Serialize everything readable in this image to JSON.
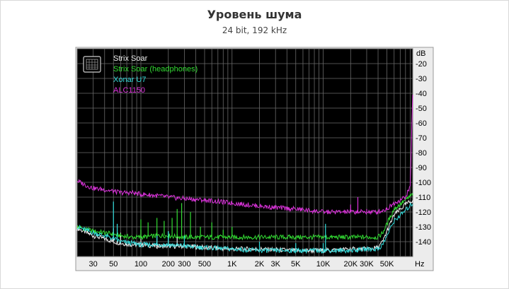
{
  "chart_data": {
    "type": "line",
    "title": "Уровень шума",
    "subtitle": "24 bit, 192 kHz",
    "xlabel": "Hz",
    "ylabel": "dB",
    "x_scale": "log",
    "xlim": [
      20,
      96000
    ],
    "ylim": [
      -150,
      -10
    ],
    "grid": true,
    "legend_position": "top-left",
    "background": "#000000",
    "x_ticks": [
      {
        "v": 30,
        "label": "30"
      },
      {
        "v": 50,
        "label": "50"
      },
      {
        "v": 100,
        "label": "100"
      },
      {
        "v": 200,
        "label": "200"
      },
      {
        "v": 300,
        "label": "300"
      },
      {
        "v": 500,
        "label": "500"
      },
      {
        "v": 1000,
        "label": "1K"
      },
      {
        "v": 2000,
        "label": "2K"
      },
      {
        "v": 3000,
        "label": "3K"
      },
      {
        "v": 5000,
        "label": "5K"
      },
      {
        "v": 10000,
        "label": "10K"
      },
      {
        "v": 20000,
        "label": "20K"
      },
      {
        "v": 30000,
        "label": "30K"
      },
      {
        "v": 50000,
        "label": "50K"
      }
    ],
    "y_ticks": [
      {
        "v": -20,
        "label": "-20"
      },
      {
        "v": -30,
        "label": "-30"
      },
      {
        "v": -40,
        "label": "-40"
      },
      {
        "v": -50,
        "label": "-50"
      },
      {
        "v": -60,
        "label": "-60"
      },
      {
        "v": -70,
        "label": "-70"
      },
      {
        "v": -80,
        "label": "-80"
      },
      {
        "v": -90,
        "label": "-90"
      },
      {
        "v": -100,
        "label": "-100"
      },
      {
        "v": -110,
        "label": "-110"
      },
      {
        "v": -120,
        "label": "-120"
      },
      {
        "v": -130,
        "label": "-130"
      },
      {
        "v": -140,
        "label": "-140"
      }
    ],
    "series": [
      {
        "name": "Strix Soar",
        "color": "#f0f0f0",
        "x": [
          20,
          30,
          40,
          50,
          60,
          80,
          100,
          150,
          200,
          300,
          500,
          1000,
          2000,
          5000,
          10000,
          20000,
          30000,
          40000,
          45000,
          50000,
          60000,
          80000,
          96000
        ],
        "y": [
          -131,
          -136,
          -138,
          -140,
          -141,
          -142,
          -142,
          -143,
          -143,
          -143,
          -144,
          -145,
          -145,
          -146,
          -146,
          -145,
          -145,
          -144,
          -140,
          -133,
          -122,
          -115,
          -112
        ],
        "spikes": [
          {
            "x": 50,
            "y": -131
          },
          {
            "x": 60,
            "y": -134
          },
          {
            "x": 100,
            "y": -132
          },
          {
            "x": 150,
            "y": -134
          },
          {
            "x": 200,
            "y": -133
          },
          {
            "x": 250,
            "y": -135
          }
        ]
      },
      {
        "name": "Strix Soar (headphones)",
        "color": "#33dd33",
        "x": [
          20,
          30,
          40,
          50,
          60,
          80,
          100,
          150,
          200,
          300,
          500,
          1000,
          2000,
          5000,
          10000,
          20000,
          30000,
          40000,
          45000,
          50000,
          60000,
          80000,
          96000
        ],
        "y": [
          -130,
          -133,
          -134,
          -135,
          -136,
          -137,
          -137,
          -136,
          -136,
          -137,
          -137,
          -137,
          -137,
          -137,
          -137,
          -137,
          -137,
          -137,
          -134,
          -128,
          -118,
          -112,
          -108
        ],
        "spikes": [
          {
            "x": 100,
            "y": -125
          },
          {
            "x": 120,
            "y": -127
          },
          {
            "x": 150,
            "y": -124
          },
          {
            "x": 180,
            "y": -126
          },
          {
            "x": 220,
            "y": -124
          },
          {
            "x": 250,
            "y": -118
          },
          {
            "x": 280,
            "y": -114
          },
          {
            "x": 350,
            "y": -120
          },
          {
            "x": 450,
            "y": -130
          },
          {
            "x": 600,
            "y": -127
          },
          {
            "x": 800,
            "y": -132
          },
          {
            "x": 1000,
            "y": -130
          }
        ]
      },
      {
        "name": "Xonar U7",
        "color": "#33dddd",
        "x": [
          20,
          30,
          40,
          50,
          60,
          80,
          100,
          150,
          200,
          300,
          500,
          1000,
          2000,
          5000,
          10000,
          20000,
          30000,
          40000,
          45000,
          50000,
          60000,
          80000,
          96000
        ],
        "y": [
          -130,
          -134,
          -136,
          -138,
          -140,
          -141,
          -142,
          -142,
          -142,
          -143,
          -144,
          -145,
          -146,
          -146,
          -146,
          -146,
          -145,
          -145,
          -142,
          -136,
          -126,
          -119,
          -114
        ],
        "spikes": [
          {
            "x": 50,
            "y": -113
          },
          {
            "x": 55,
            "y": -128
          },
          {
            "x": 150,
            "y": -136
          },
          {
            "x": 200,
            "y": -133
          },
          {
            "x": 300,
            "y": -136
          },
          {
            "x": 2000,
            "y": -140
          },
          {
            "x": 5000,
            "y": -141
          },
          {
            "x": 10000,
            "y": -141
          },
          {
            "x": 10600,
            "y": -128
          }
        ]
      },
      {
        "name": "ALC1150",
        "color": "#dd33dd",
        "x": [
          20,
          25,
          30,
          40,
          50,
          60,
          80,
          100,
          150,
          200,
          300,
          500,
          700,
          1000,
          2000,
          3000,
          5000,
          10000,
          20000,
          30000,
          40000,
          50000,
          60000,
          80000,
          90000,
          96000
        ],
        "y": [
          -99,
          -102,
          -104,
          -105,
          -106,
          -107,
          -107,
          -108,
          -109,
          -110,
          -111,
          -112,
          -113,
          -114,
          -116,
          -117,
          -118,
          -120,
          -120,
          -120,
          -120,
          -118,
          -114,
          -110,
          -103,
          -40
        ],
        "spikes": [
          {
            "x": 20000,
            "y": -115
          },
          {
            "x": 24000,
            "y": -110
          },
          {
            "x": 30000,
            "y": -118
          },
          {
            "x": 50000,
            "y": -117
          }
        ]
      }
    ]
  }
}
